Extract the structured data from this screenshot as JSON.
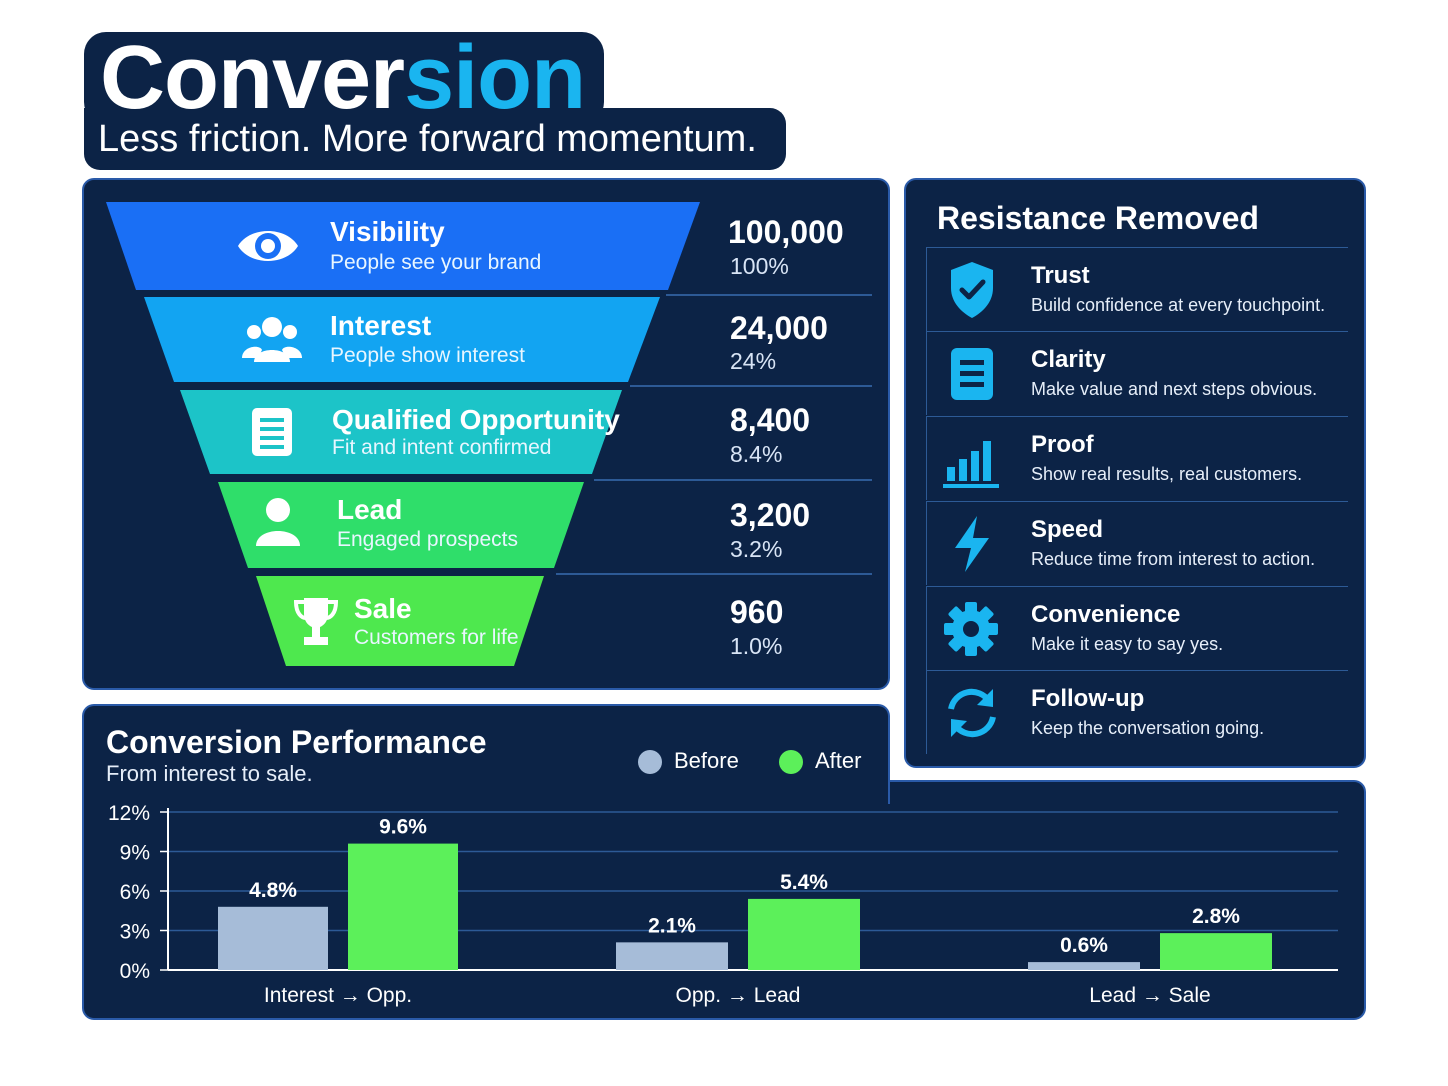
{
  "header": {
    "title_part1": "Conver",
    "title_part2": "sion",
    "subtitle": "Less friction. More forward momentum."
  },
  "funnel": [
    {
      "name": "Visibility",
      "desc": "People see your brand",
      "count": "100,000",
      "pct": "100%",
      "icon": "eye-icon",
      "color": "#1a6ff5"
    },
    {
      "name": "Interest",
      "desc": "People show interest",
      "count": "24,000",
      "pct": "24%",
      "icon": "people-icon",
      "color": "#12a4f2"
    },
    {
      "name": "Qualified Opportunity",
      "desc": "Fit and intent confirmed",
      "count": "8,400",
      "pct": "8.4%",
      "icon": "document-icon",
      "color": "#1cc4c8"
    },
    {
      "name": "Lead",
      "desc": "Engaged prospects",
      "count": "3,200",
      "pct": "3.2%",
      "icon": "person-icon",
      "color": "#2fde6a"
    },
    {
      "name": "Sale",
      "desc": "Customers for life",
      "count": "960",
      "pct": "1.0%",
      "icon": "trophy-icon",
      "color": "#4ee84e"
    }
  ],
  "resistance": {
    "title": "Resistance Removed",
    "items": [
      {
        "name": "Trust",
        "desc": "Build confidence at every touchpoint.",
        "icon": "shield-check-icon"
      },
      {
        "name": "Clarity",
        "desc": "Make value and next steps obvious.",
        "icon": "document-icon"
      },
      {
        "name": "Proof",
        "desc": "Show real results, real customers.",
        "icon": "bar-chart-icon"
      },
      {
        "name": "Speed",
        "desc": "Reduce time from interest to action.",
        "icon": "lightning-icon"
      },
      {
        "name": "Convenience",
        "desc": "Make it easy to say yes.",
        "icon": "gear-icon"
      },
      {
        "name": "Follow-up",
        "desc": "Keep the conversation going.",
        "icon": "refresh-icon"
      }
    ]
  },
  "chart_panel": {
    "title": "Conversion Performance",
    "subtitle": "From interest to sale."
  },
  "colors": {
    "background": "#0c2346",
    "accent": "#1ab5f0",
    "before": "#a6bcd8",
    "after": "#5cf05a"
  },
  "chart_data": {
    "type": "bar",
    "categories": [
      "Interest → Opp.",
      "Opp. → Lead",
      "Lead → Sale"
    ],
    "series": [
      {
        "name": "Before",
        "values": [
          4.8,
          2.1,
          0.6
        ],
        "labels": [
          "4.8%",
          "2.1%",
          "0.6%"
        ],
        "color": "#a6bcd8"
      },
      {
        "name": "After",
        "values": [
          9.6,
          5.4,
          2.8
        ],
        "labels": [
          "9.6%",
          "5.4%",
          "2.8%"
        ],
        "color": "#5cf05a"
      }
    ],
    "yticks": [
      0,
      3,
      6,
      9,
      12
    ],
    "ytick_labels": [
      "0%",
      "3%",
      "6%",
      "9%",
      "12%"
    ],
    "ylim": [
      0,
      12
    ],
    "grid": true,
    "legend": "top-right"
  }
}
